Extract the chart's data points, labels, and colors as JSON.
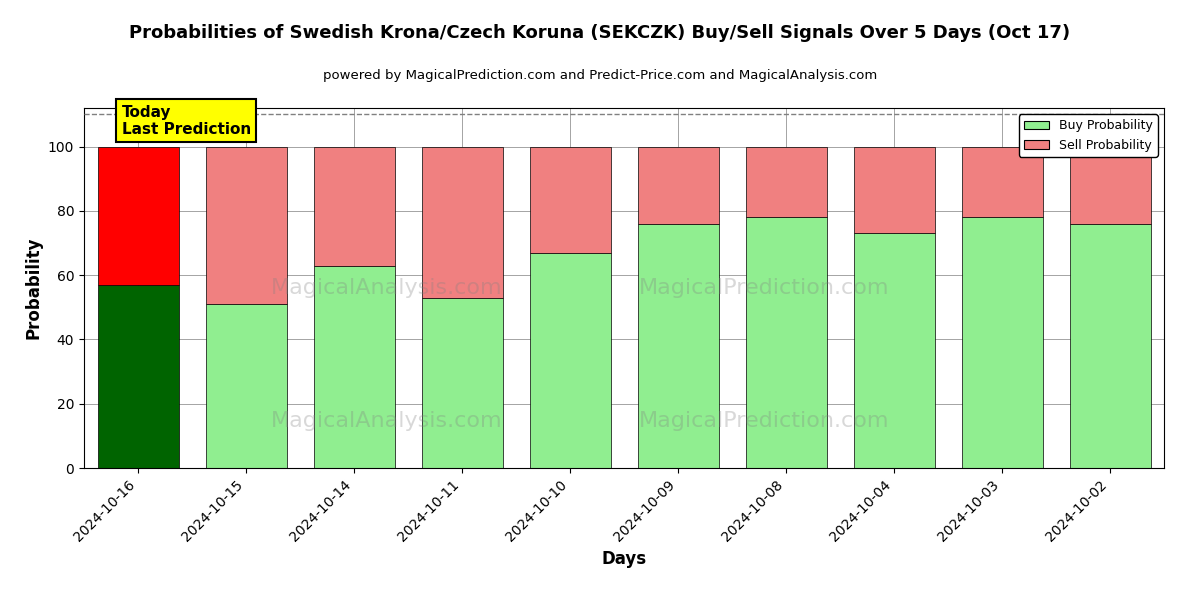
{
  "title": "Probabilities of Swedish Krona/Czech Koruna (SEKCZK) Buy/Sell Signals Over 5 Days (Oct 17)",
  "subtitle": "powered by MagicalPrediction.com and Predict-Price.com and MagicalAnalysis.com",
  "xlabel": "Days",
  "ylabel": "Probability",
  "categories": [
    "2024-10-16",
    "2024-10-15",
    "2024-10-14",
    "2024-10-11",
    "2024-10-10",
    "2024-10-09",
    "2024-10-08",
    "2024-10-04",
    "2024-10-03",
    "2024-10-02"
  ],
  "buy_values": [
    57,
    51,
    63,
    53,
    67,
    76,
    78,
    73,
    78,
    76
  ],
  "sell_values": [
    43,
    49,
    37,
    47,
    33,
    24,
    22,
    27,
    22,
    24
  ],
  "today_buy_color": "#006400",
  "today_sell_color": "#FF0000",
  "buy_color": "#90EE90",
  "sell_color": "#F08080",
  "today_label_bg": "#FFFF00",
  "today_label_text": "Today\nLast Prediction",
  "legend_buy": "Buy Probability",
  "legend_sell": "Sell Probability",
  "ylim": [
    0,
    112
  ],
  "yticks": [
    0,
    20,
    40,
    60,
    80,
    100
  ],
  "dashed_line_y": 110,
  "background_color": "#ffffff",
  "watermark1": "MagicalAnalysis.com",
  "watermark2": "MagicalPrediction.com",
  "bar_edge_color": "#000000",
  "bar_linewidth": 0.5
}
